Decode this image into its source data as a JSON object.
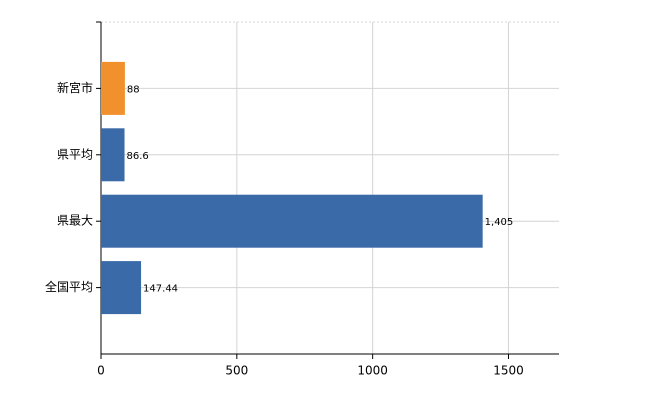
{
  "chart_data": {
    "type": "hbar",
    "categories": [
      "新宮市",
      "県平均",
      "県最大",
      "全国平均"
    ],
    "values": [
      88,
      86.6,
      1405,
      147.44
    ],
    "value_labels": [
      "88",
      "86.6",
      "1,405",
      "147.44"
    ],
    "colors": [
      "#f0912e",
      "#3a6aa8",
      "#3a6aa8",
      "#3a6aa8"
    ],
    "xlim": [
      0,
      1686
    ],
    "xticks": [
      0,
      500,
      1000,
      1500
    ],
    "grid": true
  }
}
